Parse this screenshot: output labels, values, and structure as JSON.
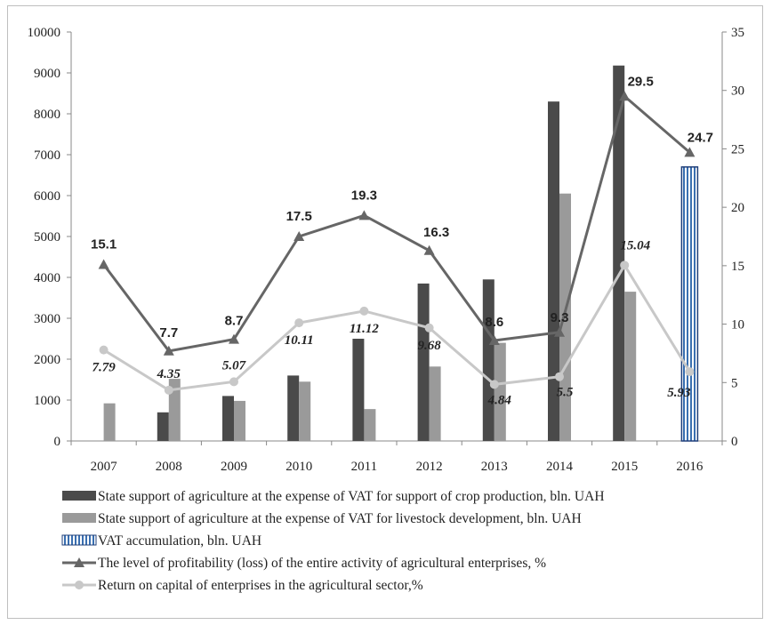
{
  "chart_data": {
    "type": "bar",
    "categories": [
      "2007",
      "2008",
      "2009",
      "2010",
      "2011",
      "2012",
      "2013",
      "2014",
      "2015",
      "2016"
    ],
    "y_left": {
      "min": 0,
      "max": 10000,
      "step": 1000
    },
    "y_right": {
      "min": 0,
      "max": 35,
      "step": 5
    },
    "grid": false,
    "legend_position": "bottom",
    "series": [
      {
        "name": "State support of agriculture at the expense of VAT for support of crop production, bln. UAH",
        "kind": "bar",
        "axis": "left",
        "color": "#4a4a4a",
        "values": [
          null,
          700,
          1100,
          1600,
          2500,
          3850,
          3950,
          8300,
          9180,
          null
        ]
      },
      {
        "name": "State support of agriculture at the expense of VAT for livestock development, bln. UAH",
        "kind": "bar",
        "axis": "left",
        "color": "#9a9a9a",
        "values": [
          920,
          1520,
          980,
          1450,
          780,
          1820,
          2400,
          6050,
          3650,
          null
        ]
      },
      {
        "name": "VAT accumulation, bln. UAH",
        "kind": "bar",
        "axis": "left",
        "color": "#ffffff",
        "pattern": "vertical-stripes",
        "values": [
          null,
          null,
          null,
          null,
          null,
          null,
          null,
          null,
          null,
          6700
        ]
      },
      {
        "name": "The level of profitability (loss) of the entire activity of agricultural enterprises, %",
        "kind": "line",
        "axis": "right",
        "color": "#666666",
        "marker": "triangle",
        "values": [
          15.1,
          7.7,
          8.7,
          17.5,
          19.3,
          16.3,
          8.6,
          9.3,
          29.5,
          24.7
        ],
        "labels": [
          "15.1",
          "7.7",
          "8.7",
          "17.5",
          "19.3",
          "16.3",
          "8.6",
          "9.3",
          "29.5",
          "24.7"
        ]
      },
      {
        "name": "Return on capital of enterprises in the agricultural sector,%",
        "kind": "line",
        "axis": "right",
        "color": "#c8c8c8",
        "marker": "circle",
        "values": [
          7.79,
          4.35,
          5.07,
          10.11,
          11.12,
          9.68,
          4.84,
          5.5,
          15.04,
          5.93
        ],
        "labels": [
          "7.79",
          "4.35",
          "5.07",
          "10.11",
          "11.12",
          "9.68",
          "4.84",
          "5.5",
          "15.04",
          "5.93"
        ]
      }
    ]
  }
}
